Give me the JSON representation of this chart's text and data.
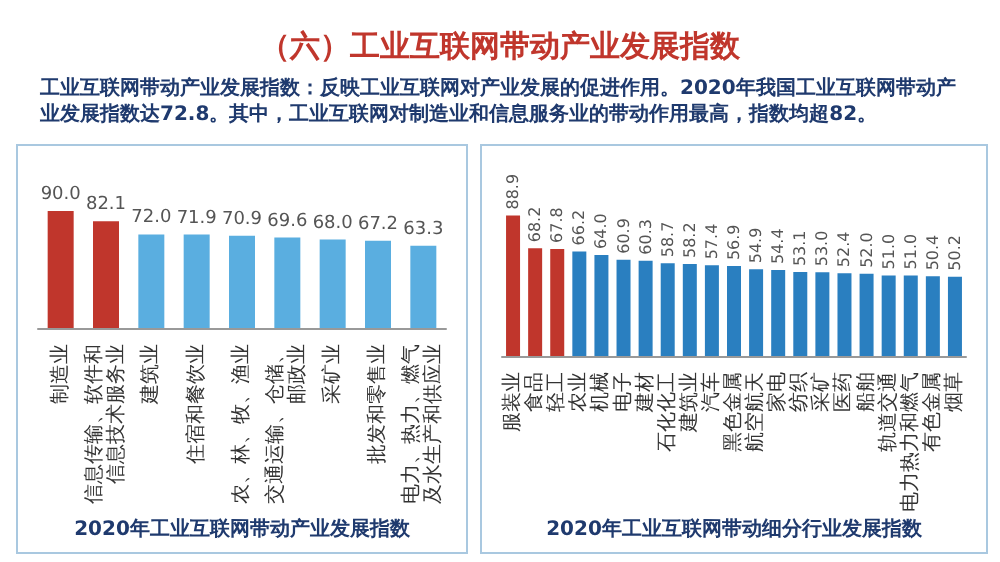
{
  "chart_data": [
    {
      "type": "other",
      "title": "（六）工业互联网带动产业发展指数",
      "annotations": [
        "工业互联网带动产业发展指数：反映工业互联网对产业发展的促进作用。2020年我国工业互联网带动产业发展指数达72.8。其中，工业互联网对制造业和信息服务业的带动作用最高，指数均超82。"
      ]
    },
    {
      "type": "bar",
      "title": "2020年工业互联网带动产业发展指数",
      "categories": [
        "制造业",
        "信息传输、软件和信息技术服务业",
        "建筑业",
        "住宿和餐饮业",
        "农、林、牧、渔业",
        "交通运输、仓储、邮政业",
        "采矿业",
        "批发和零售业",
        "电力、热力、燃气及水生产和供应业"
      ],
      "values": [
        90.0,
        82.1,
        72.0,
        71.9,
        70.9,
        69.6,
        68.0,
        67.2,
        63.3
      ],
      "value_labels": [
        "90.0",
        "82.1",
        "72.0",
        "71.9",
        "70.9",
        "69.6",
        "68.0",
        "67.2",
        "63.3"
      ],
      "colors": [
        "#c0362c",
        "#c0362c",
        "#5aaee0",
        "#5aaee0",
        "#5aaee0",
        "#5aaee0",
        "#5aaee0",
        "#5aaee0",
        "#5aaee0"
      ],
      "tick_labels": "x"
    },
    {
      "type": "bar",
      "title": "2020年工业互联网带动细分行业发展指数",
      "categories": [
        "服装业",
        "食品",
        "轻工",
        "农业",
        "机械",
        "电子",
        "建材",
        "石化化工",
        "建筑业",
        "汽车",
        "黑色金属",
        "航空航天",
        "家电",
        "纺织",
        "采矿",
        "医药",
        "船舶",
        "轨道交通",
        "电力热力和燃气",
        "有色金属",
        "烟草"
      ],
      "values": [
        88.9,
        68.2,
        67.8,
        66.2,
        64.0,
        60.9,
        60.3,
        58.7,
        58.2,
        57.4,
        56.9,
        54.9,
        54.4,
        53.1,
        53.0,
        52.4,
        52.0,
        51.0,
        51.0,
        50.4,
        50.2
      ],
      "value_labels": [
        "88.9",
        "68.2",
        "67.8",
        "66.2",
        "64.0",
        "60.9",
        "60.3",
        "58.7",
        "58.2",
        "57.4",
        "56.9",
        "54.9",
        "54.4",
        "53.1",
        "53.0",
        "52.4",
        "52.0",
        "51.0",
        "51.0",
        "50.4",
        "50.2"
      ],
      "colors": [
        "#c0362c",
        "#c0362c",
        "#c0362c",
        "#2a7fc0",
        "#2a7fc0",
        "#2a7fc0",
        "#2a7fc0",
        "#2a7fc0",
        "#2a7fc0",
        "#2a7fc0",
        "#2a7fc0",
        "#2a7fc0",
        "#2a7fc0",
        "#2a7fc0",
        "#2a7fc0",
        "#2a7fc0",
        "#2a7fc0",
        "#2a7fc0",
        "#2a7fc0",
        "#2a7fc0",
        "#2a7fc0"
      ],
      "tick_labels": "x"
    }
  ]
}
